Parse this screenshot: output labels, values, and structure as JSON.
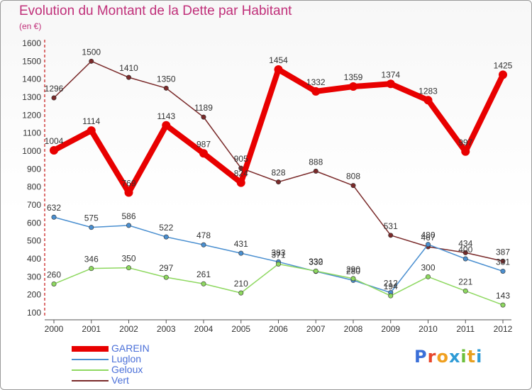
{
  "title": "Evolution du Montant de la Dette par Habitant",
  "subtitle": "(en €)",
  "logo": {
    "text": "Proxiti",
    "letter_colors": [
      "#3a6fd8",
      "#e8462b",
      "#f0a020",
      "#2e9bd6",
      "#6cbf3c",
      "#e8a020",
      "#2e9bd6"
    ]
  },
  "chart_data": {
    "type": "line",
    "x": [
      "2000",
      "2001",
      "2002",
      "2003",
      "2004",
      "2005",
      "2006",
      "2007",
      "2008",
      "2009",
      "2010",
      "2011",
      "2012"
    ],
    "ylim": [
      100,
      1600
    ],
    "yticks": [
      100,
      200,
      300,
      400,
      500,
      600,
      700,
      800,
      900,
      1000,
      1100,
      1200,
      1300,
      1400,
      1500,
      1600
    ],
    "grid": false,
    "legend_position": "bottom-left",
    "series": [
      {
        "name": "GAREIN",
        "color": "#e80000",
        "values": [
          1004,
          1114,
          769,
          1143,
          987,
          824,
          1454,
          1332,
          1359,
          1374,
          1283,
          997,
          1425
        ],
        "labels": [
          "1004",
          "1114",
          "769",
          "1143",
          "987",
          "824",
          "1454",
          "1332",
          "1359",
          "1374",
          "1283",
          "997",
          "1425"
        ]
      },
      {
        "name": "Luglon",
        "color": "#4a8fd0",
        "values": [
          632,
          575,
          586,
          522,
          478,
          431,
          383,
          330,
          280,
          212,
          480,
          400,
          331
        ],
        "labels": [
          "632",
          "575",
          "586",
          "522",
          "478",
          "431",
          "383",
          "330",
          "280",
          "212",
          "480",
          "400",
          "331"
        ]
      },
      {
        "name": "Geloux",
        "color": "#8ed860",
        "values": [
          260,
          346,
          350,
          297,
          261,
          210,
          371,
          332,
          290,
          194,
          300,
          221,
          143
        ],
        "labels": [
          "260",
          "346",
          "350",
          "297",
          "261",
          "210",
          "371",
          "332",
          "290",
          "194",
          "300",
          "221",
          "143"
        ]
      },
      {
        "name": "Vert",
        "color": "#7a2a2a",
        "values": [
          1296,
          1500,
          1410,
          1350,
          1189,
          905,
          828,
          888,
          808,
          531,
          467,
          434,
          387
        ],
        "labels": [
          "1296",
          "1500",
          "1410",
          "1350",
          "1189",
          "905",
          "828",
          "888",
          "808",
          "531",
          "467",
          "434",
          "387"
        ]
      }
    ]
  }
}
